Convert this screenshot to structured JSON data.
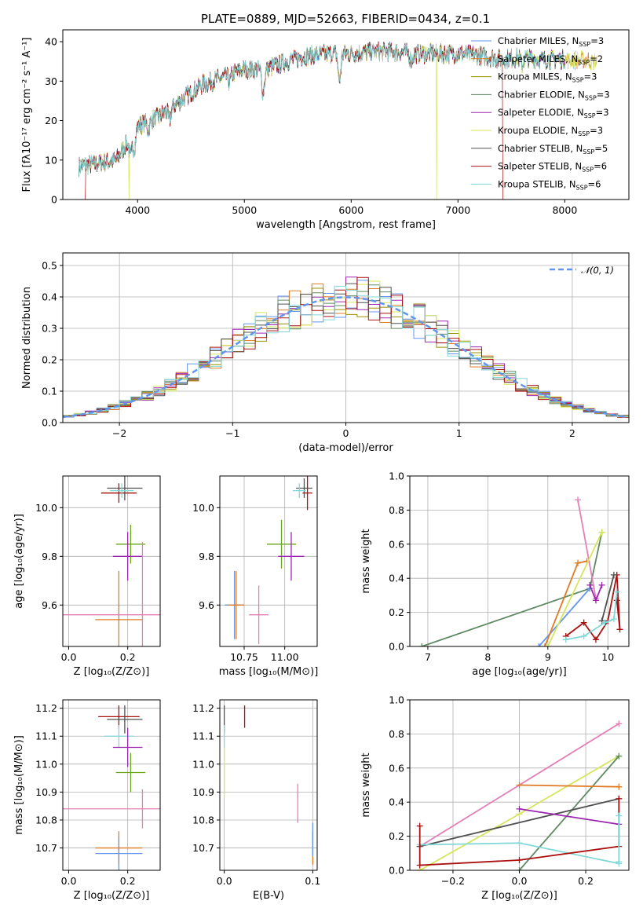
{
  "figure": {
    "title": "PLATE=0889, MJD=52663, FIBERID=0434, z=0.1"
  },
  "colors": {
    "Chabrier MILES": "#6495ed",
    "Salpeter MILES": "#e07b25",
    "Kroupa MILES": "#9a8f00",
    "Chabrier ELODIE": "#5f8a63",
    "Salpeter ELODIE": "#9b27b0",
    "Kroupa ELODIE": "#d6e65a",
    "Chabrier STELIB": "#505050",
    "Salpeter STELIB": "#aa1010",
    "Kroupa STELIB": "#80d8d8",
    "pink": "#e57fb5",
    "green": "#6aa61c"
  },
  "chart_data": [
    {
      "type": "line",
      "title": "PLATE=0889, MJD=52663, FIBERID=0434, z=0.1",
      "xlabel": "wavelength [Angstrom, rest frame]",
      "ylabel": "Flux [fλ10⁻¹⁷ erg cm⁻² s⁻¹ A⁻¹]",
      "xlim": [
        3300,
        8600
      ],
      "ylim": [
        0,
        43
      ],
      "xticks": [
        "4000",
        "5000",
        "6000",
        "7000",
        "8000"
      ],
      "yticks": [
        "0",
        "10",
        "20",
        "30",
        "40"
      ],
      "legend_position": "top-right",
      "series": [
        {
          "name": "Chabrier MILES, N_SSP=3",
          "label": "Chabrier MILES, N",
          "sub": "SSP",
          "suffix": "=3"
        },
        {
          "name": "Salpeter MILES, N_SSP=2",
          "label": "Salpeter MILES, N",
          "sub": "SSP",
          "suffix": "=2"
        },
        {
          "name": "Kroupa MILES, N_SSP=3",
          "label": "Kroupa MILES, N",
          "sub": "SSP",
          "suffix": "=3"
        },
        {
          "name": "Chabrier ELODIE, N_SSP=3",
          "label": "Chabrier ELODIE, N",
          "sub": "SSP",
          "suffix": "=3"
        },
        {
          "name": "Salpeter ELODIE, N_SSP=3",
          "label": "Salpeter ELODIE, N",
          "sub": "SSP",
          "suffix": "=3"
        },
        {
          "name": "Kroupa ELODIE, N_SSP=3",
          "label": "Kroupa ELODIE, N",
          "sub": "SSP",
          "suffix": "=3"
        },
        {
          "name": "Chabrier STELIB, N_SSP=5",
          "label": "Chabrier STELIB, N",
          "sub": "SSP",
          "suffix": "=5"
        },
        {
          "name": "Salpeter STELIB, N_SSP=6",
          "label": "Salpeter STELIB, N",
          "sub": "SSP",
          "suffix": "=6"
        },
        {
          "name": "Kroupa STELIB, N_SSP=6",
          "label": "Kroupa STELIB, N",
          "sub": "SSP",
          "suffix": "=6"
        }
      ],
      "continuum": [
        [
          3450,
          8.5
        ],
        [
          3600,
          9
        ],
        [
          3800,
          10
        ],
        [
          4000,
          18.5
        ],
        [
          4200,
          21
        ],
        [
          4400,
          25
        ],
        [
          4600,
          29
        ],
        [
          4800,
          31
        ],
        [
          5000,
          33
        ],
        [
          5200,
          33
        ],
        [
          5400,
          35
        ],
        [
          5600,
          36.5
        ],
        [
          5800,
          37
        ],
        [
          6000,
          37
        ],
        [
          6200,
          37.5
        ],
        [
          6400,
          37.5
        ],
        [
          6600,
          37
        ],
        [
          6800,
          37
        ],
        [
          7000,
          37
        ],
        [
          7200,
          36.5
        ],
        [
          7400,
          35.5
        ],
        [
          7600,
          36
        ],
        [
          7800,
          35.5
        ],
        [
          8000,
          35.5
        ],
        [
          8300,
          35
        ]
      ],
      "drops": [
        {
          "series": "Salpeter STELIB, N_SSP=6",
          "x": 3510,
          "to": 0
        },
        {
          "series": "Kroupa ELODIE, N_SSP=3",
          "x": 3920,
          "to": 0
        },
        {
          "series": "Kroupa ELODIE, N_SSP=3",
          "x": 6800,
          "to": 0
        },
        {
          "series": "Salpeter STELIB, N_SSP=6",
          "x": 7420,
          "to": 0
        }
      ]
    },
    {
      "type": "line",
      "xlabel": "(data-model)/error",
      "ylabel": "Normed distribution",
      "xlim": [
        -2.5,
        2.5
      ],
      "ylim": [
        0,
        0.54
      ],
      "xticks": [
        "−2",
        "−1",
        "0",
        "1",
        "2"
      ],
      "yticks": [
        "0.0",
        "0.1",
        "0.2",
        "0.3",
        "0.4",
        "0.5"
      ],
      "bin_width": 0.1,
      "legend": {
        "label": "𝒩(0, 1)"
      },
      "legend_position": "top-right",
      "reference_curve": {
        "name": "N(0,1)",
        "mean": 0,
        "sigma": 1,
        "style": "dashed"
      }
    },
    {
      "type": "scatter",
      "xlabel": "Z [log₁₀(Z/Z⊙)]",
      "ylabel": "age  [log₁₀(age/yr)]",
      "xlim": [
        -0.02,
        0.31
      ],
      "ylim": [
        9.43,
        10.13
      ],
      "xticks": [
        "0.0",
        "0.2"
      ],
      "yticks": [
        "9.6",
        "9.8",
        "10.0"
      ],
      "points": [
        {
          "c": "Salpeter STELIB",
          "x": 0.17,
          "y": 10.06,
          "ex": 0.06,
          "ey": 0.04
        },
        {
          "c": "Chabrier STELIB",
          "x": 0.19,
          "y": 10.08,
          "ex": 0.06,
          "ey": 0.05
        },
        {
          "c": "Kroupa STELIB",
          "x": 0.18,
          "y": 10.07,
          "ex": 0.04,
          "ey": 0.03
        },
        {
          "c": "green",
          "x": 0.21,
          "y": 9.85,
          "ex": 0.05,
          "ey": 0.08
        },
        {
          "c": "Salpeter ELODIE",
          "x": 0.2,
          "y": 9.8,
          "ex": 0.05,
          "ey": 0.1
        },
        {
          "c": "Salpeter MILES",
          "x": 0.17,
          "y": 9.54,
          "ex": 0.08,
          "ey": 0.2
        },
        {
          "c": "pink",
          "x": 0.25,
          "y": 9.56,
          "ex": 0.3,
          "ey": 0.3
        }
      ]
    },
    {
      "type": "scatter",
      "xlabel": "mass [log₁₀(M/M⊙)]",
      "xlim": [
        10.6,
        11.2
      ],
      "ylim": [
        9.43,
        10.13
      ],
      "xticks": [
        "10.75",
        "11.00"
      ],
      "yticks": [
        "9.6",
        "9.8",
        "10.0"
      ],
      "points": [
        {
          "c": "Salpeter STELIB",
          "x": 11.14,
          "y": 10.06,
          "ex": 0.03,
          "ey": 0.07
        },
        {
          "c": "Chabrier STELIB",
          "x": 11.12,
          "y": 10.08,
          "ex": 0.05,
          "ey": 0.04
        },
        {
          "c": "Kroupa STELIB",
          "x": 11.09,
          "y": 10.07,
          "ex": 0.04,
          "ey": 0.03
        },
        {
          "c": "green",
          "x": 10.98,
          "y": 9.85,
          "ex": 0.09,
          "ey": 0.1
        },
        {
          "c": "Salpeter ELODIE",
          "x": 11.04,
          "y": 9.8,
          "ex": 0.08,
          "ey": 0.1
        },
        {
          "c": "Chabrier MILES",
          "x": 10.69,
          "y": 9.6,
          "ex": 0.06,
          "ey": 0.14
        },
        {
          "c": "Salpeter MILES",
          "x": 10.7,
          "y": 9.6,
          "ex": 0.05,
          "ey": 0.14
        },
        {
          "c": "pink",
          "x": 10.84,
          "y": 9.56,
          "ex": 0.06,
          "ey": 0.12
        }
      ]
    },
    {
      "type": "line",
      "xlabel": "age  [log₁₀(age/yr)]",
      "ylabel": "mass weight",
      "xlim": [
        6.7,
        10.35
      ],
      "ylim": [
        0,
        1
      ],
      "xticks": [
        "7",
        "8",
        "9",
        "10"
      ],
      "yticks": [
        "0.0",
        "0.2",
        "0.4",
        "0.6",
        "0.8",
        "1.0"
      ],
      "series": [
        {
          "c": "Chabrier ELODIE",
          "pts": [
            [
              6.9,
              0
            ],
            [
              9.7,
              0.34
            ],
            [
              9.9,
              0.67
            ]
          ]
        },
        {
          "c": "Chabrier MILES",
          "pts": [
            [
              8.85,
              0
            ],
            [
              9.7,
              0.34
            ]
          ]
        },
        {
          "c": "Salpeter MILES",
          "pts": [
            [
              8.95,
              0
            ],
            [
              9.5,
              0.49
            ],
            [
              9.65,
              0.5
            ]
          ]
        },
        {
          "c": "pink",
          "pts": [
            [
              9.5,
              0.86
            ],
            [
              9.8,
              0.28
            ]
          ]
        },
        {
          "c": "Kroupa ELODIE",
          "pts": [
            [
              9.0,
              0
            ],
            [
              9.9,
              0.67
            ]
          ]
        },
        {
          "c": "Salpeter ELODIE",
          "pts": [
            [
              9.7,
              0.36
            ],
            [
              9.8,
              0.27
            ],
            [
              9.9,
              0.36
            ]
          ]
        },
        {
          "c": "Salpeter STELIB",
          "pts": [
            [
              9.3,
              0.06
            ],
            [
              9.6,
              0.14
            ],
            [
              9.8,
              0.04
            ],
            [
              10.0,
              0.15
            ],
            [
              10.15,
              0.42
            ],
            [
              10.2,
              0.1
            ],
            [
              10.15,
              0.27
            ]
          ]
        },
        {
          "c": "Chabrier STELIB",
          "pts": [
            [
              9.9,
              0.15
            ],
            [
              10.1,
              0.42
            ]
          ]
        },
        {
          "c": "Kroupa STELIB",
          "pts": [
            [
              9.3,
              0.04
            ],
            [
              9.6,
              0.06
            ],
            [
              9.95,
              0.14
            ],
            [
              10.1,
              0.16
            ],
            [
              10.15,
              0.32
            ]
          ]
        }
      ]
    },
    {
      "type": "scatter",
      "xlabel": "Z [log₁₀(Z/Z⊙)]",
      "ylabel": "mass [log₁₀(M/M⊙)]",
      "xlim": [
        -0.02,
        0.31
      ],
      "ylim": [
        10.62,
        11.23
      ],
      "xticks": [
        "0.0",
        "0.2"
      ],
      "yticks": [
        "10.7",
        "10.8",
        "10.9",
        "11.0",
        "11.1",
        "11.2"
      ],
      "points": [
        {
          "c": "Salpeter STELIB",
          "x": 0.17,
          "y": 11.17,
          "ex": 0.07,
          "ey": 0.04
        },
        {
          "c": "Chabrier STELIB",
          "x": 0.19,
          "y": 11.16,
          "ex": 0.06,
          "ey": 0.05
        },
        {
          "c": "Kroupa STELIB",
          "x": 0.17,
          "y": 11.1,
          "ex": 0.05,
          "ey": 0.04
        },
        {
          "c": "Salpeter ELODIE",
          "x": 0.2,
          "y": 11.06,
          "ex": 0.05,
          "ey": 0.07
        },
        {
          "c": "green",
          "x": 0.21,
          "y": 10.97,
          "ex": 0.05,
          "ey": 0.07
        },
        {
          "c": "pink",
          "x": 0.25,
          "y": 10.84,
          "ex": 0.3,
          "ey": 0.07
        },
        {
          "c": "Salpeter MILES",
          "x": 0.17,
          "y": 10.7,
          "ex": 0.08,
          "ey": 0.06
        },
        {
          "c": "Chabrier MILES",
          "x": 0.17,
          "y": 10.68,
          "ex": 0.08,
          "ey": 0.06
        }
      ]
    },
    {
      "type": "scatter",
      "xlabel": "E(B-V)",
      "xlim": [
        -0.005,
        0.105
      ],
      "ylim": [
        10.62,
        11.23
      ],
      "xticks": [
        "0.0",
        "0.1"
      ],
      "yticks": [
        "10.7",
        "10.8",
        "10.9",
        "11.0",
        "11.1",
        "11.2"
      ],
      "points": [
        {
          "c": "Salpeter STELIB",
          "x": 0.023,
          "y": 11.17,
          "ex": 0,
          "ey": 0.04
        },
        {
          "c": "Chabrier STELIB",
          "x": 0.0,
          "y": 11.16,
          "ex": 0,
          "ey": 0.05
        },
        {
          "c": "Kroupa STELIB",
          "x": 0.0,
          "y": 11.1,
          "ex": 0,
          "ey": 0.04
        },
        {
          "c": "Kroupa ELODIE",
          "x": 0.0,
          "y": 10.97,
          "ex": 0,
          "ey": 0.09
        },
        {
          "c": "pink",
          "x": 0.083,
          "y": 10.86,
          "ex": 0,
          "ey": 0.07
        },
        {
          "c": "Salpeter MILES",
          "x": 0.1,
          "y": 10.7,
          "ex": 0,
          "ey": 0.06
        },
        {
          "c": "Chabrier MILES",
          "x": 0.1,
          "y": 10.73,
          "ex": 0,
          "ey": 0.06
        }
      ]
    },
    {
      "type": "line",
      "xlabel": "Z [log₁₀(Z/Z⊙)]",
      "ylabel": "mass weight",
      "xlim": [
        -0.33,
        0.33
      ],
      "ylim": [
        0,
        1
      ],
      "xticks": [
        "−0.2",
        "0.0",
        "0.2"
      ],
      "yticks": [
        "0.0",
        "0.2",
        "0.4",
        "0.6",
        "0.8",
        "1.0"
      ],
      "series": [
        {
          "c": "pink",
          "pts": [
            [
              -0.3,
              0.14
            ],
            [
              0.3,
              0.86
            ]
          ]
        },
        {
          "c": "Kroupa ELODIE",
          "pts": [
            [
              -0.3,
              0
            ],
            [
              0.0,
              0.33
            ],
            [
              0.3,
              0.67
            ]
          ]
        },
        {
          "c": "Chabrier ELODIE",
          "pts": [
            [
              0.0,
              0
            ],
            [
              0.3,
              0.67
            ]
          ]
        },
        {
          "c": "Salpeter MILES",
          "pts": [
            [
              0.0,
              0.5
            ],
            [
              0.3,
              0.49
            ]
          ]
        },
        {
          "c": "Chabrier STELIB",
          "pts": [
            [
              -0.3,
              0.14
            ],
            [
              0.3,
              0.42
            ]
          ]
        },
        {
          "c": "Salpeter ELODIE",
          "pts": [
            [
              0.0,
              0.36
            ],
            [
              0.3,
              0.27
            ]
          ]
        },
        {
          "c": "Kroupa STELIB",
          "pts": [
            [
              -0.3,
              0.15
            ],
            [
              0.0,
              0.16
            ],
            [
              0.3,
              0.04
            ]
          ]
        },
        {
          "c": "Salpeter STELIB",
          "pts": [
            [
              -0.3,
              0.26
            ],
            [
              -0.3,
              0.03
            ],
            [
              0.0,
              0.06
            ],
            [
              0.3,
              0.14
            ],
            [
              0.3,
              0.42
            ]
          ]
        },
        {
          "c": "Kroupa STELIB",
          "pts": [
            [
              0.3,
              0.32
            ],
            [
              0.3,
              0.05
            ]
          ]
        }
      ]
    }
  ]
}
